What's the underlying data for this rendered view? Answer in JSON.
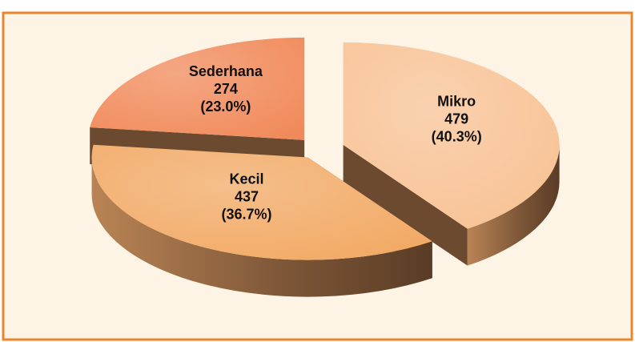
{
  "chart_data": {
    "type": "pie",
    "categories": [
      "Mikro",
      "Kecil",
      "Sederhana"
    ],
    "values": [
      479,
      437,
      274
    ],
    "percent_labels": [
      "(40.3%)",
      "(36.7%)",
      "(23.0%)"
    ],
    "colors": [
      "#f8c294",
      "#f2a964",
      "#f18a5a"
    ]
  }
}
